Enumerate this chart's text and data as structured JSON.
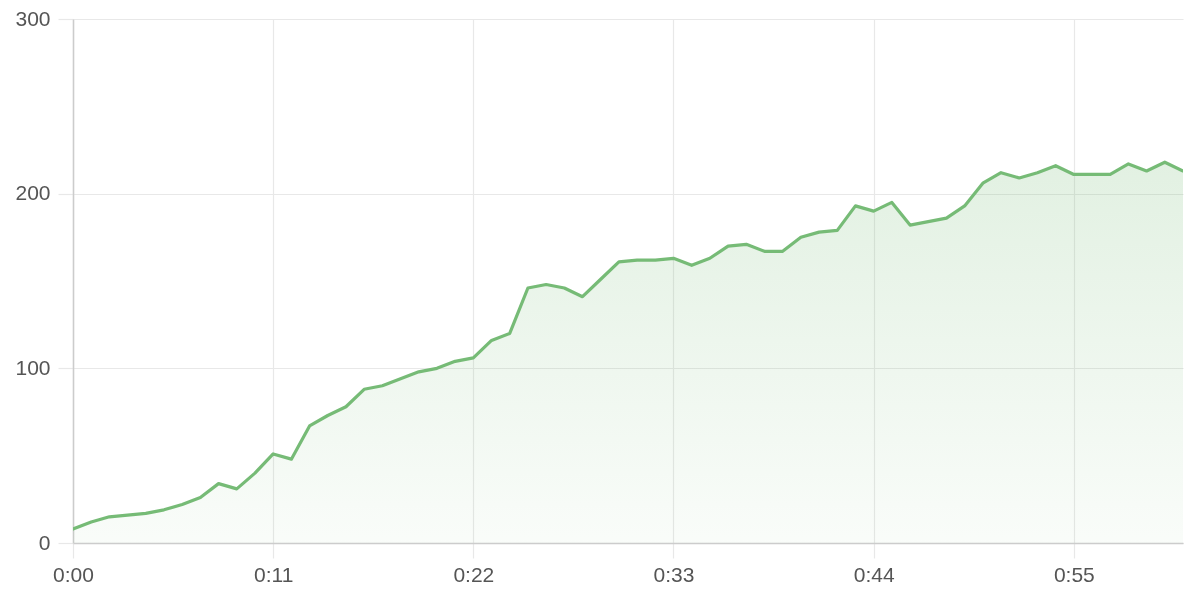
{
  "chart_data": {
    "type": "area",
    "x": [
      0,
      1,
      2,
      3,
      4,
      5,
      6,
      7,
      8,
      9,
      10,
      11,
      12,
      13,
      14,
      15,
      16,
      17,
      18,
      19,
      20,
      21,
      22,
      23,
      24,
      25,
      26,
      27,
      28,
      29,
      30,
      31,
      32,
      33,
      34,
      35,
      36,
      37,
      38,
      39,
      40,
      41,
      42,
      43,
      44,
      45,
      46,
      47,
      48,
      49,
      50,
      51,
      52,
      53,
      54,
      55,
      56,
      57,
      58,
      59,
      60,
      61
    ],
    "series": [
      {
        "color": "#76bb76",
        "values": [
          8,
          12,
          15,
          16,
          17,
          19,
          22,
          26,
          34,
          31,
          40,
          51,
          48,
          67,
          73,
          78,
          88,
          90,
          94,
          98,
          100,
          104,
          106,
          116,
          120,
          146,
          148,
          146,
          141,
          151,
          161,
          162,
          162,
          163,
          159,
          163,
          170,
          171,
          167,
          167,
          175,
          178,
          179,
          193,
          190,
          195,
          182,
          184,
          186,
          193,
          206,
          212,
          209,
          212,
          216,
          211,
          211,
          211,
          217,
          213,
          218,
          213
        ]
      }
    ],
    "xlim": [
      0,
      61
    ],
    "xticks": [
      {
        "value": 0,
        "label": "0:00"
      },
      {
        "value": 11,
        "label": "0:11"
      },
      {
        "value": 22,
        "label": "0:22"
      },
      {
        "value": 33,
        "label": "0:33"
      },
      {
        "value": 44,
        "label": "0:44"
      },
      {
        "value": 55,
        "label": "0:55"
      }
    ],
    "ylim": [
      0,
      300
    ],
    "yticks": [
      0,
      100,
      200,
      300
    ],
    "grid": true
  }
}
